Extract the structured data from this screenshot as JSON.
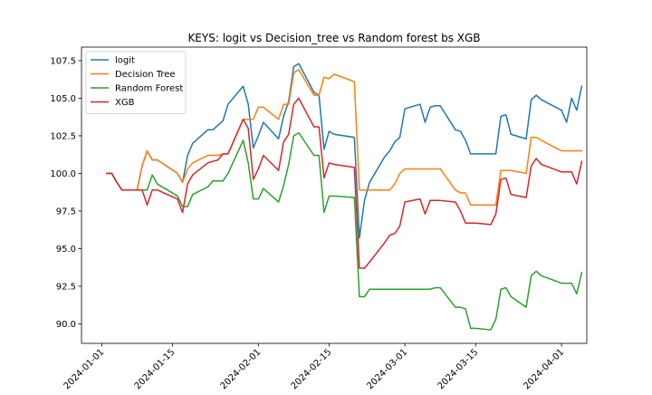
{
  "chart_data": {
    "type": "line",
    "title": "KEYS: logit vs Decision_tree vs Random forest bs XGB",
    "xlabel": "",
    "ylabel": "",
    "xlim": [
      "2023-12-28",
      "2024-04-06"
    ],
    "ylim": [
      88.7,
      108.4
    ],
    "xticks": [
      "2024-01-01",
      "2024-01-15",
      "2024-02-01",
      "2024-02-15",
      "2024-03-01",
      "2024-03-15",
      "2024-04-01"
    ],
    "yticks": [
      "90.0",
      "92.5",
      "95.0",
      "97.5",
      "100.0",
      "102.5",
      "105.0",
      "107.5"
    ],
    "grid": false,
    "legend_position": "upper-left",
    "series": [
      {
        "name": "logit",
        "color": "#1f77b4",
        "x": [
          "2024-01-02",
          "2024-01-03",
          "2024-01-04",
          "2024-01-05",
          "2024-01-08",
          "2024-01-09",
          "2024-01-10",
          "2024-01-11",
          "2024-01-12",
          "2024-01-16",
          "2024-01-17",
          "2024-01-18",
          "2024-01-19",
          "2024-01-22",
          "2024-01-23",
          "2024-01-24",
          "2024-01-25",
          "2024-01-26",
          "2024-01-29",
          "2024-01-30",
          "2024-01-31",
          "2024-02-01",
          "2024-02-02",
          "2024-02-05",
          "2024-02-06",
          "2024-02-07",
          "2024-02-08",
          "2024-02-09",
          "2024-02-12",
          "2024-02-13",
          "2024-02-14",
          "2024-02-15",
          "2024-02-16",
          "2024-02-20",
          "2024-02-21",
          "2024-02-22",
          "2024-02-23",
          "2024-02-26",
          "2024-02-27",
          "2024-02-28",
          "2024-02-29",
          "2024-03-01",
          "2024-03-04",
          "2024-03-05",
          "2024-03-06",
          "2024-03-07",
          "2024-03-08",
          "2024-03-11",
          "2024-03-12",
          "2024-03-13",
          "2024-03-14",
          "2024-03-15",
          "2024-03-18",
          "2024-03-19",
          "2024-03-20",
          "2024-03-21",
          "2024-03-22",
          "2024-03-25",
          "2024-03-26",
          "2024-03-27",
          "2024-03-28",
          "2024-04-01",
          "2024-04-02",
          "2024-04-03",
          "2024-04-04",
          "2024-04-05"
        ],
        "y": [
          100.0,
          100.0,
          99.4,
          98.9,
          98.9,
          100.5,
          101.5,
          100.9,
          100.9,
          100.0,
          99.4,
          101.2,
          102.0,
          102.9,
          102.9,
          103.2,
          103.5,
          104.6,
          105.8,
          104.6,
          101.7,
          102.5,
          103.4,
          102.3,
          103.8,
          104.8,
          107.1,
          107.3,
          105.4,
          105.2,
          101.6,
          102.8,
          102.6,
          102.4,
          95.7,
          98.2,
          99.4,
          101.1,
          101.5,
          102.1,
          102.4,
          104.3,
          104.6,
          103.4,
          104.4,
          104.5,
          104.5,
          102.9,
          102.8,
          102.2,
          101.3,
          101.3,
          101.3,
          101.3,
          103.8,
          103.9,
          102.6,
          102.3,
          104.9,
          105.2,
          104.9,
          104.2,
          103.4,
          105.0,
          104.2,
          105.8
        ]
      },
      {
        "name": "Decision Tree",
        "color": "#ff7f0e",
        "x": [
          "2024-01-02",
          "2024-01-03",
          "2024-01-04",
          "2024-01-05",
          "2024-01-08",
          "2024-01-09",
          "2024-01-10",
          "2024-01-11",
          "2024-01-12",
          "2024-01-16",
          "2024-01-17",
          "2024-01-18",
          "2024-01-19",
          "2024-01-22",
          "2024-01-23",
          "2024-01-24",
          "2024-01-25",
          "2024-01-26",
          "2024-01-29",
          "2024-01-30",
          "2024-01-31",
          "2024-02-01",
          "2024-02-02",
          "2024-02-05",
          "2024-02-06",
          "2024-02-07",
          "2024-02-08",
          "2024-02-09",
          "2024-02-12",
          "2024-02-13",
          "2024-02-14",
          "2024-02-15",
          "2024-02-16",
          "2024-02-20",
          "2024-02-21",
          "2024-02-22",
          "2024-02-23",
          "2024-02-26",
          "2024-02-27",
          "2024-02-28",
          "2024-02-29",
          "2024-03-01",
          "2024-03-04",
          "2024-03-05",
          "2024-03-06",
          "2024-03-07",
          "2024-03-08",
          "2024-03-11",
          "2024-03-12",
          "2024-03-13",
          "2024-03-14",
          "2024-03-15",
          "2024-03-18",
          "2024-03-19",
          "2024-03-20",
          "2024-03-21",
          "2024-03-22",
          "2024-03-25",
          "2024-03-26",
          "2024-03-27",
          "2024-03-28",
          "2024-04-01",
          "2024-04-02",
          "2024-04-03",
          "2024-04-04",
          "2024-04-05"
        ],
        "y": [
          100.0,
          100.0,
          99.4,
          98.9,
          98.9,
          100.5,
          101.5,
          100.9,
          100.9,
          100.0,
          99.4,
          100.3,
          100.7,
          101.2,
          101.2,
          101.2,
          101.3,
          101.3,
          103.6,
          103.6,
          103.6,
          104.4,
          104.4,
          103.6,
          104.6,
          104.6,
          106.7,
          106.9,
          105.2,
          105.2,
          106.4,
          106.3,
          106.6,
          106.1,
          98.9,
          98.9,
          98.9,
          98.9,
          98.9,
          99.3,
          100.0,
          100.3,
          100.3,
          100.3,
          100.3,
          100.3,
          100.3,
          98.9,
          98.7,
          98.7,
          97.9,
          97.9,
          97.9,
          97.9,
          100.2,
          100.2,
          100.2,
          100.0,
          102.4,
          102.4,
          102.2,
          101.5,
          101.5,
          101.5,
          101.5,
          101.5
        ]
      },
      {
        "name": "Random Forest",
        "color": "#2ca02c",
        "x": [
          "2024-01-02",
          "2024-01-03",
          "2024-01-04",
          "2024-01-05",
          "2024-01-08",
          "2024-01-09",
          "2024-01-10",
          "2024-01-11",
          "2024-01-12",
          "2024-01-16",
          "2024-01-17",
          "2024-01-18",
          "2024-01-19",
          "2024-01-22",
          "2024-01-23",
          "2024-01-24",
          "2024-01-25",
          "2024-01-26",
          "2024-01-29",
          "2024-01-30",
          "2024-01-31",
          "2024-02-01",
          "2024-02-02",
          "2024-02-05",
          "2024-02-06",
          "2024-02-07",
          "2024-02-08",
          "2024-02-09",
          "2024-02-12",
          "2024-02-13",
          "2024-02-14",
          "2024-02-15",
          "2024-02-16",
          "2024-02-20",
          "2024-02-21",
          "2024-02-22",
          "2024-02-23",
          "2024-02-26",
          "2024-02-27",
          "2024-02-28",
          "2024-02-29",
          "2024-03-01",
          "2024-03-04",
          "2024-03-05",
          "2024-03-06",
          "2024-03-07",
          "2024-03-08",
          "2024-03-11",
          "2024-03-12",
          "2024-03-13",
          "2024-03-14",
          "2024-03-15",
          "2024-03-18",
          "2024-03-19",
          "2024-03-20",
          "2024-03-21",
          "2024-03-22",
          "2024-03-25",
          "2024-03-26",
          "2024-03-27",
          "2024-03-28",
          "2024-04-01",
          "2024-04-02",
          "2024-04-03",
          "2024-04-04",
          "2024-04-05"
        ],
        "y": [
          100.0,
          100.0,
          99.4,
          98.9,
          98.9,
          98.9,
          98.9,
          99.9,
          99.3,
          98.5,
          97.8,
          97.8,
          98.6,
          99.1,
          99.5,
          99.5,
          99.5,
          100.0,
          102.2,
          100.7,
          98.3,
          98.3,
          99.0,
          98.1,
          99.2,
          100.6,
          102.5,
          102.7,
          101.2,
          101.2,
          97.4,
          98.5,
          98.5,
          98.4,
          91.8,
          91.8,
          92.3,
          92.3,
          92.3,
          92.3,
          92.3,
          92.3,
          92.3,
          92.3,
          92.3,
          92.4,
          92.4,
          91.1,
          91.1,
          91.0,
          89.7,
          89.7,
          89.6,
          90.3,
          92.3,
          92.4,
          91.8,
          91.1,
          93.2,
          93.5,
          93.2,
          92.7,
          92.7,
          92.7,
          92.0,
          93.4
        ]
      },
      {
        "name": "XGB",
        "color": "#d62728",
        "x": [
          "2024-01-02",
          "2024-01-03",
          "2024-01-04",
          "2024-01-05",
          "2024-01-08",
          "2024-01-09",
          "2024-01-10",
          "2024-01-11",
          "2024-01-12",
          "2024-01-16",
          "2024-01-17",
          "2024-01-18",
          "2024-01-19",
          "2024-01-22",
          "2024-01-23",
          "2024-01-24",
          "2024-01-25",
          "2024-01-26",
          "2024-01-29",
          "2024-01-30",
          "2024-01-31",
          "2024-02-01",
          "2024-02-02",
          "2024-02-05",
          "2024-02-06",
          "2024-02-07",
          "2024-02-08",
          "2024-02-09",
          "2024-02-12",
          "2024-02-13",
          "2024-02-14",
          "2024-02-15",
          "2024-02-16",
          "2024-02-20",
          "2024-02-21",
          "2024-02-22",
          "2024-02-23",
          "2024-02-26",
          "2024-02-27",
          "2024-02-28",
          "2024-02-29",
          "2024-03-01",
          "2024-03-04",
          "2024-03-05",
          "2024-03-06",
          "2024-03-07",
          "2024-03-08",
          "2024-03-11",
          "2024-03-12",
          "2024-03-13",
          "2024-03-14",
          "2024-03-15",
          "2024-03-18",
          "2024-03-19",
          "2024-03-20",
          "2024-03-21",
          "2024-03-22",
          "2024-03-25",
          "2024-03-26",
          "2024-03-27",
          "2024-03-28",
          "2024-04-01",
          "2024-04-02",
          "2024-04-03",
          "2024-04-04",
          "2024-04-05"
        ],
        "y": [
          100.0,
          100.0,
          99.4,
          98.9,
          98.9,
          98.9,
          97.9,
          98.9,
          98.9,
          98.3,
          97.4,
          99.3,
          99.9,
          100.7,
          100.8,
          100.9,
          101.3,
          101.3,
          103.6,
          103.0,
          99.6,
          100.3,
          101.2,
          100.2,
          102.1,
          102.6,
          104.6,
          105.0,
          103.1,
          103.1,
          99.7,
          100.7,
          100.6,
          100.4,
          93.7,
          93.7,
          94.1,
          95.4,
          95.9,
          96.0,
          96.5,
          98.1,
          98.3,
          97.3,
          98.2,
          98.2,
          98.2,
          98.1,
          97.5,
          96.7,
          96.7,
          96.7,
          96.6,
          97.3,
          99.6,
          99.7,
          98.6,
          98.4,
          100.5,
          101.0,
          100.6,
          100.1,
          100.1,
          100.1,
          99.3,
          100.8
        ]
      }
    ]
  }
}
